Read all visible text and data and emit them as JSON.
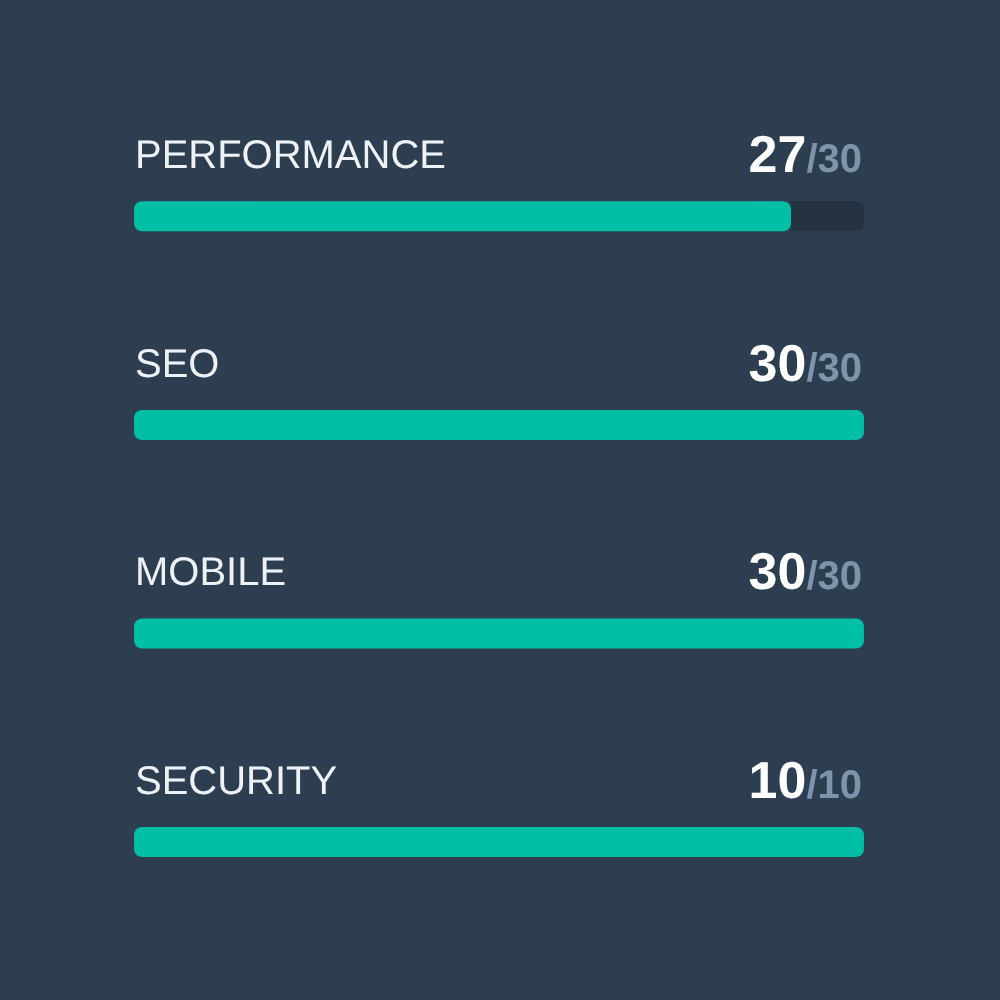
{
  "chart_data": {
    "type": "bar",
    "orientation": "horizontal",
    "categories": [
      "PERFORMANCE",
      "SEO",
      "MOBILE",
      "SECURITY"
    ],
    "values": [
      0.9,
      1,
      1,
      1
    ],
    "color": "#00bfa5",
    "value_labels": [
      "27/30",
      "30/30",
      "30/30",
      "10/10"
    ],
    "tick_labels": "y"
  }
}
